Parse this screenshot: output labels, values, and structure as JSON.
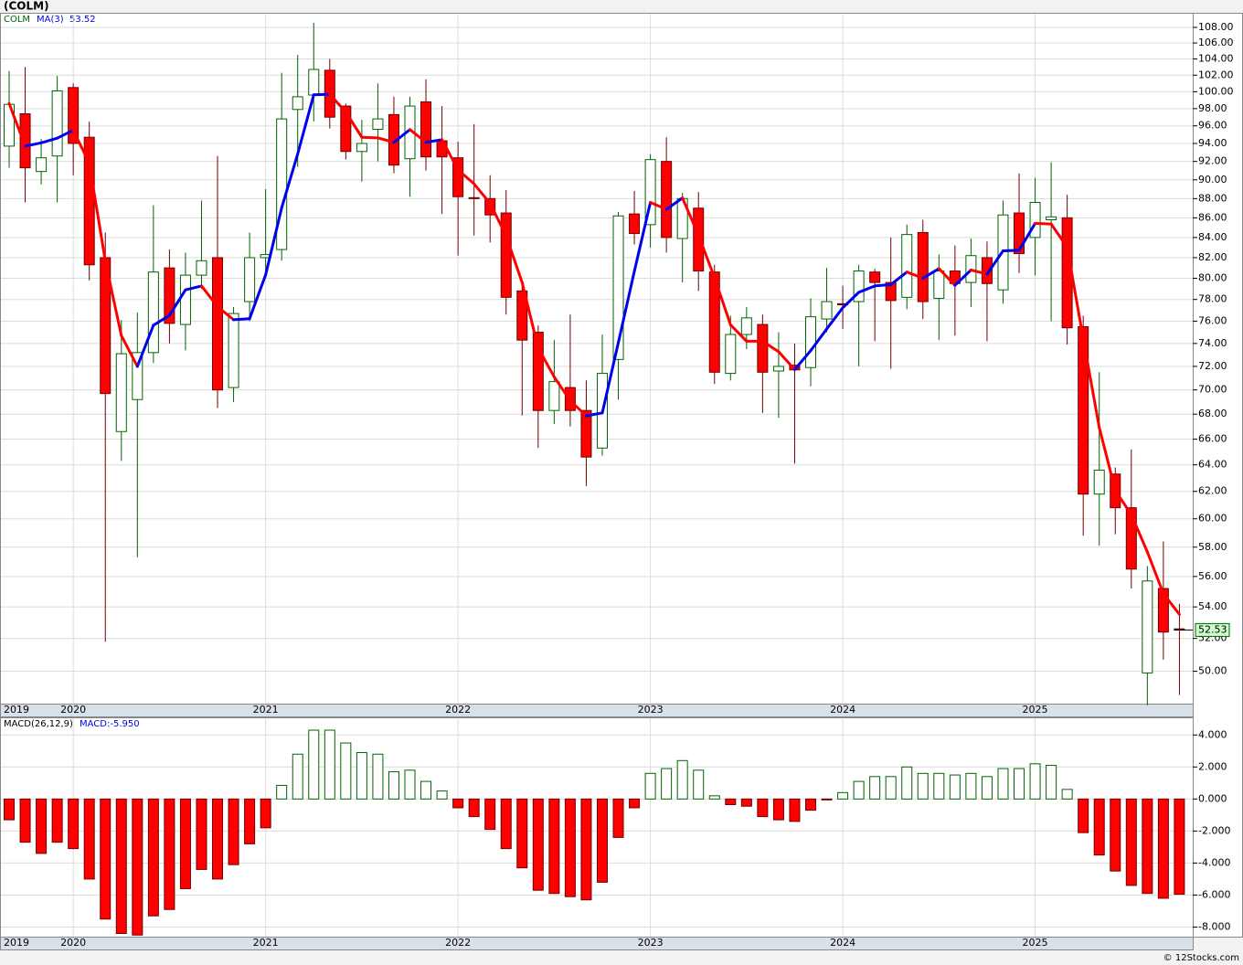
{
  "header": {
    "title": "(COLM)",
    "footer": "© 12Stocks.com"
  },
  "chart_data": [
    {
      "type": "candlestick",
      "symbol": "COLM",
      "ma_name": "MA(3)",
      "ma_last": 53.52,
      "last_price": 52.53,
      "categories": [
        "2019",
        null,
        null,
        null,
        "2020",
        null,
        null,
        null,
        null,
        null,
        null,
        null,
        null,
        null,
        null,
        null,
        "2021",
        null,
        null,
        null,
        null,
        null,
        null,
        null,
        null,
        null,
        null,
        null,
        "2022",
        null,
        null,
        null,
        null,
        null,
        null,
        null,
        null,
        null,
        null,
        null,
        "2023",
        null,
        null,
        null,
        null,
        null,
        null,
        null,
        null,
        null,
        null,
        null,
        "2024",
        null,
        null,
        null,
        null,
        null,
        null,
        null,
        null,
        null,
        null,
        null,
        "2025",
        null,
        null,
        null,
        null,
        null,
        null,
        null,
        null,
        null
      ],
      "open": [
        93.7,
        97.4,
        90.9,
        92.6,
        100.5,
        94.7,
        82,
        66.6,
        69.2,
        73.2,
        81,
        75.7,
        80.3,
        82,
        70.2,
        77.8,
        82,
        82.8,
        97.9,
        99.6,
        102.6,
        98.3,
        93.1,
        95.6,
        97.3,
        92.3,
        98.8,
        94.3,
        92.4,
        88.1,
        88,
        86.5,
        78.8,
        75,
        68.3,
        70.2,
        68.3,
        65.3,
        72.6,
        86.4,
        85.3,
        92,
        83.9,
        87,
        80.6,
        71.4,
        74.8,
        75.7,
        71.6,
        72.1,
        71.9,
        76.2,
        77.6,
        77.8,
        80.6,
        79.6,
        78.2,
        84.5,
        78.1,
        80.7,
        79.6,
        82,
        78.9,
        86.5,
        84,
        85.8,
        86,
        75.5,
        61.8,
        63.3,
        60.8,
        49.9,
        55.2,
        52.6
      ],
      "high": [
        102.5,
        103,
        94.5,
        101.9,
        101,
        96.5,
        84.5,
        76.1,
        76.8,
        87.3,
        82.8,
        82.5,
        87.8,
        92.6,
        77.3,
        84.5,
        89,
        102.3,
        104.5,
        108.6,
        104,
        98.6,
        96.7,
        101,
        99.4,
        99.4,
        101.5,
        98.3,
        94.2,
        96.2,
        90.5,
        88.9,
        79.6,
        75.6,
        74.3,
        76.6,
        70.8,
        74.8,
        86.6,
        88.8,
        92.8,
        94.7,
        88.6,
        88.7,
        81.3,
        76.5,
        77.3,
        76.6,
        75,
        74,
        78.1,
        81,
        79.3,
        81.3,
        80.9,
        84,
        85.3,
        85.8,
        82.3,
        83.2,
        83.9,
        83.6,
        87.8,
        90.7,
        90.2,
        91.9,
        88.4,
        76.5,
        71.5,
        63.8,
        65.2,
        56.7,
        58.4,
        54.2
      ],
      "low": [
        91.3,
        87.6,
        89.5,
        87.6,
        90.5,
        79.8,
        51.8,
        64.3,
        57.3,
        72.3,
        74,
        73.4,
        79,
        68.5,
        69,
        76,
        80,
        81.7,
        91.4,
        96.5,
        95.7,
        92.2,
        89.8,
        92,
        90.7,
        88.2,
        91,
        86.4,
        82.2,
        84.2,
        83.5,
        76.6,
        67.9,
        65.3,
        67.2,
        67,
        62.4,
        64.7,
        69.2,
        83.3,
        83,
        82.5,
        79.6,
        78.8,
        70.5,
        70.8,
        73.5,
        68.1,
        67.7,
        64.1,
        70.3,
        75,
        75.3,
        72,
        74.2,
        71.8,
        77.1,
        76.2,
        74.3,
        74.7,
        77.3,
        74.2,
        77.6,
        80.5,
        80.3,
        76,
        73.9,
        58.8,
        58.1,
        58.9,
        55.2,
        48,
        50.7,
        48.6
      ],
      "close": [
        98.5,
        91.3,
        92.4,
        100.1,
        94,
        81.3,
        69.7,
        73.1,
        73.2,
        80.6,
        75.8,
        80.3,
        81.7,
        70,
        76.7,
        82,
        82.3,
        96.8,
        99.4,
        102.7,
        97,
        93.1,
        94,
        96.8,
        91.6,
        98.3,
        92.5,
        92.5,
        88.2,
        88,
        86.3,
        78.2,
        74.3,
        68.3,
        70.7,
        68.3,
        64.6,
        71.4,
        86.2,
        84.4,
        92.2,
        84,
        88,
        80.7,
        71.5,
        74.8,
        76.3,
        71.5,
        72,
        71.7,
        76.4,
        77.8,
        77.5,
        80.7,
        79.6,
        77.9,
        84.3,
        77.8,
        80.7,
        79.5,
        82.2,
        79.5,
        86.3,
        82.4,
        87.6,
        86.1,
        75.4,
        61.8,
        63.6,
        60.8,
        56.5,
        55.7,
        52.4,
        52.53
      ],
      "ma": {
        "values": [
          98.6,
          93.7,
          94.07,
          94.6,
          95.5,
          91.8,
          81.67,
          74.7,
          72.0,
          75.63,
          76.53,
          78.9,
          79.27,
          77.33,
          76.13,
          76.23,
          80.33,
          87.03,
          92.83,
          99.63,
          99.7,
          97.6,
          94.7,
          94.63,
          94.13,
          95.57,
          94.13,
          94.43,
          91.07,
          89.57,
          87.5,
          84.17,
          79.6,
          73.6,
          71.1,
          69.1,
          67.87,
          68.1,
          74.07,
          80.67,
          87.6,
          86.87,
          88.07,
          84.23,
          80.07,
          75.67,
          74.2,
          74.2,
          73.27,
          71.73,
          73.37,
          75.3,
          77.23,
          78.67,
          79.27,
          79.4,
          80.6,
          80,
          80.93,
          79.33,
          80.8,
          80.4,
          82.67,
          82.73,
          85.43,
          85.37,
          83.03,
          74.43,
          66.93,
          62.07,
          60.3,
          57.67,
          54.87,
          53.52
        ],
        "rising_color": "#0000ee",
        "falling_color": "#ff0000"
      },
      "up_color": "#006400",
      "down_color": "#ff0000",
      "ylim": [
        48.1,
        109.9
      ],
      "log_scale": true,
      "grid": true,
      "yticks": [
        {
          "value": 50,
          "label": "50.00"
        },
        {
          "value": 52,
          "label": "52.00"
        },
        {
          "value": 54,
          "label": "54.00"
        },
        {
          "value": 56,
          "label": "56.00"
        },
        {
          "value": 58,
          "label": "58.00"
        },
        {
          "value": 60,
          "label": "60.00"
        },
        {
          "value": 62,
          "label": "62.00"
        },
        {
          "value": 64,
          "label": "64.00"
        },
        {
          "value": 66,
          "label": "66.00"
        },
        {
          "value": 68,
          "label": "68.00"
        },
        {
          "value": 70,
          "label": "70.00"
        },
        {
          "value": 72,
          "label": "72.00"
        },
        {
          "value": 74,
          "label": "74.00"
        },
        {
          "value": 76,
          "label": "76.00"
        },
        {
          "value": 78,
          "label": "78.00"
        },
        {
          "value": 80,
          "label": "80.00"
        },
        {
          "value": 82,
          "label": "82.00"
        },
        {
          "value": 84,
          "label": "84.00"
        },
        {
          "value": 86,
          "label": "86.00"
        },
        {
          "value": 88,
          "label": "88.00"
        },
        {
          "value": 90,
          "label": "90.00"
        },
        {
          "value": 92,
          "label": "92.00"
        },
        {
          "value": 94,
          "label": "94.00"
        },
        {
          "value": 96,
          "label": "96.00"
        },
        {
          "value": 98,
          "label": "98.00"
        },
        {
          "value": 100,
          "label": "100.00"
        },
        {
          "value": 102,
          "label": "102.00"
        },
        {
          "value": 104,
          "label": "104.00"
        },
        {
          "value": 106,
          "label": "106.00"
        },
        {
          "value": 108,
          "label": "108.00"
        }
      ]
    },
    {
      "type": "bar",
      "title": "MACD(26,12,9)",
      "legend": "MACD:-5.950",
      "categories": [
        "2019",
        null,
        null,
        null,
        "2020",
        null,
        null,
        null,
        null,
        null,
        null,
        null,
        null,
        null,
        null,
        null,
        "2021",
        null,
        null,
        null,
        null,
        null,
        null,
        null,
        null,
        null,
        null,
        null,
        "2022",
        null,
        null,
        null,
        null,
        null,
        null,
        null,
        null,
        null,
        null,
        null,
        "2023",
        null,
        null,
        null,
        null,
        null,
        null,
        null,
        null,
        null,
        null,
        null,
        "2024",
        null,
        null,
        null,
        null,
        null,
        null,
        null,
        null,
        null,
        null,
        null,
        "2025",
        null,
        null,
        null,
        null,
        null,
        null,
        null,
        null,
        null
      ],
      "values": [
        -1.3,
        -2.7,
        -3.4,
        -2.7,
        -3.1,
        -5.0,
        -7.5,
        -8.4,
        -8.5,
        -7.3,
        -6.9,
        -5.6,
        -4.4,
        -5.0,
        -4.1,
        -2.8,
        -1.8,
        0.85,
        2.8,
        4.3,
        4.3,
        3.5,
        2.9,
        2.8,
        1.7,
        1.8,
        1.1,
        0.5,
        -0.55,
        -1.1,
        -1.9,
        -3.1,
        -4.3,
        -5.7,
        -5.9,
        -6.1,
        -6.3,
        -5.2,
        -2.4,
        -0.55,
        1.6,
        1.9,
        2.4,
        1.8,
        0.2,
        -0.35,
        -0.45,
        -1.1,
        -1.3,
        -1.4,
        -0.7,
        -0.05,
        0.4,
        1.1,
        1.4,
        1.4,
        2.0,
        1.6,
        1.6,
        1.5,
        1.6,
        1.4,
        1.9,
        1.9,
        2.2,
        2.1,
        0.6,
        -2.1,
        -3.5,
        -4.5,
        -5.4,
        -5.9,
        -6.2,
        -5.95
      ],
      "up_color": "#006400",
      "down_color": "#ff0000",
      "ylim": [
        -8.6,
        5.1
      ],
      "grid": true,
      "yticks": [
        {
          "value": 4,
          "label": "4.000"
        },
        {
          "value": 2,
          "label": "2.000"
        },
        {
          "value": 0,
          "label": "0.000"
        },
        {
          "value": -2,
          "label": "-2.000"
        },
        {
          "value": -4,
          "label": "-4.000"
        },
        {
          "value": -6,
          "label": "-6.000"
        },
        {
          "value": -8,
          "label": "-8.000"
        }
      ]
    }
  ]
}
